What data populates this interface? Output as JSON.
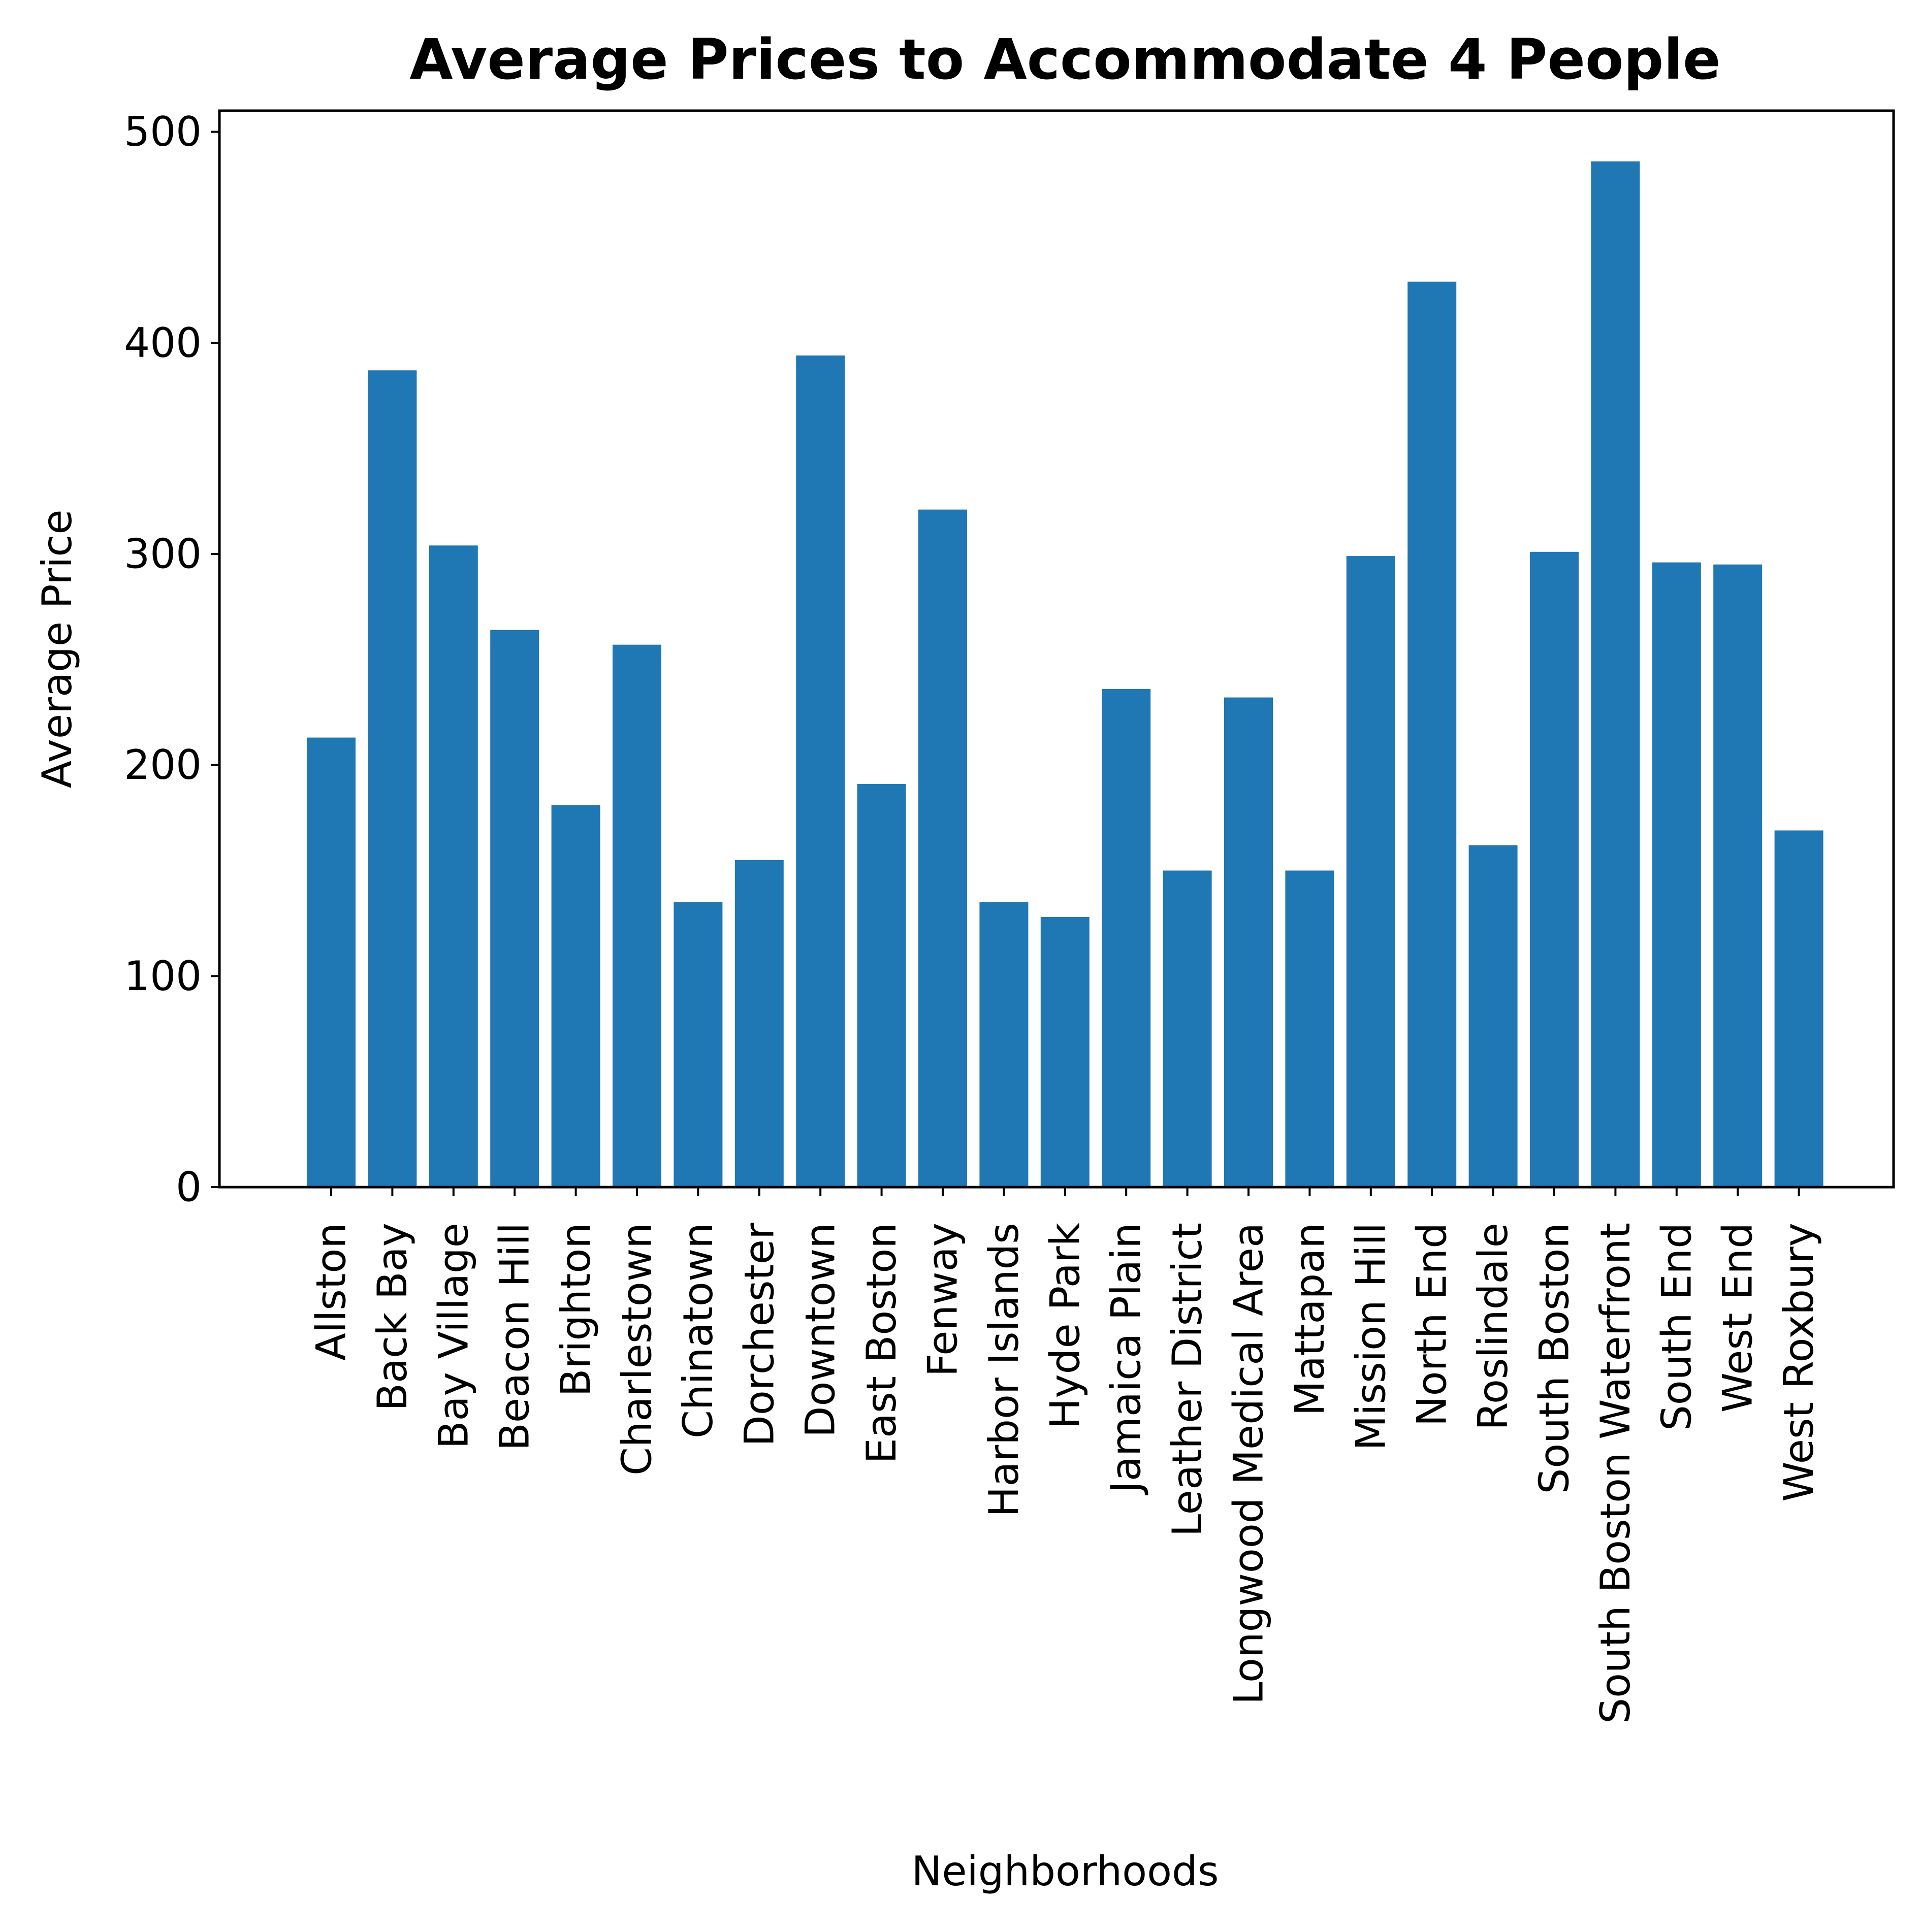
{
  "chart_data": {
    "type": "bar",
    "title": "Average Prices to Accommodate 4 People",
    "xlabel": "Neighborhoods",
    "ylabel": "Average Price",
    "ylim": [
      0,
      510
    ],
    "yticks": [
      0,
      100,
      200,
      300,
      400,
      500
    ],
    "grid": false,
    "legend": "none",
    "bar_color": "#1f77b4",
    "categories": [
      "Allston",
      "Back Bay",
      "Bay Village",
      "Beacon Hill",
      "Brighton",
      "Charlestown",
      "Chinatown",
      "Dorchester",
      "Downtown",
      "East Boston",
      "Fenway",
      "Harbor Islands",
      "Hyde Park",
      "Jamaica Plain",
      "Leather District",
      "Longwood Medical Area",
      "Mattapan",
      "Mission Hill",
      "North End",
      "Roslindale",
      "South Boston",
      "South Boston Waterfront",
      "South End",
      "West End",
      "West Roxbury"
    ],
    "values": [
      213,
      387,
      304,
      264,
      181,
      257,
      135,
      155,
      394,
      191,
      321,
      135,
      128,
      236,
      150,
      232,
      150,
      299,
      429,
      162,
      301,
      486,
      296,
      295,
      169
    ]
  }
}
